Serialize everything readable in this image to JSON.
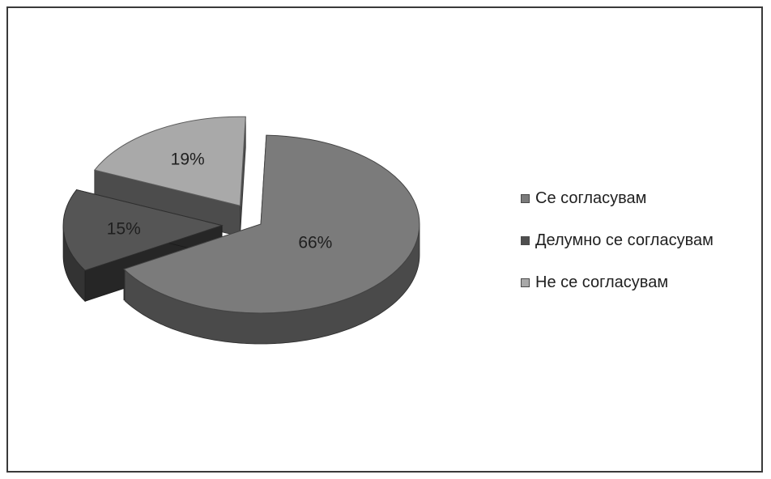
{
  "chart_data": {
    "type": "pie",
    "title": "",
    "legend_position": "right",
    "categories": [
      "Се согласувам",
      "Делумно се согласувам",
      "Не се согласувам"
    ],
    "values": [
      66,
      15,
      19
    ],
    "value_labels": [
      "66%",
      "15%",
      "19%"
    ],
    "colors": [
      "#7b7b7b",
      "#555555",
      "#a9a9a9"
    ],
    "exploded": [
      false,
      true,
      true
    ],
    "three_d": true
  },
  "legend": {
    "items": [
      {
        "label": "Се согласувам",
        "color": "#7b7b7b"
      },
      {
        "label": "Делумно се согласувам",
        "color": "#4f4f4f"
      },
      {
        "label": "Не се согласувам",
        "color": "#a9a9a9"
      }
    ]
  }
}
